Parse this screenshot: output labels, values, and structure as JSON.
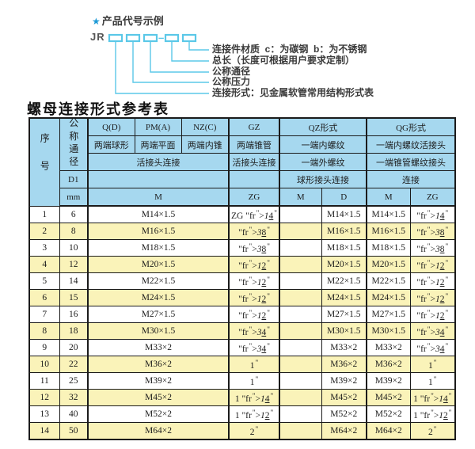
{
  "colors": {
    "header_bg": "#a6d8ef",
    "row_alt_bg": "#faf3b9",
    "line_cyan": "#5bc8e8",
    "star_blue": "#1e9ad6",
    "border_dark": "#1b1b1b"
  },
  "diagram": {
    "star": "★",
    "heading": "产品代号示例",
    "code_prefix": "JR",
    "separator": "—",
    "labels": [
      "连接件材质  c：为碳钢  b：为不锈钢",
      "总长（长度可根据用户要求定制）",
      "公称通径",
      "公称压力",
      "连接形式：见金属软管常用结构形式表"
    ]
  },
  "title": "螺母连接形式参考表",
  "table": {
    "header": {
      "seq": "序号",
      "dn": "公称通径",
      "d1": "D1",
      "mm": "mm",
      "col_q": "Q(D)",
      "col_pm": "PM(A)",
      "col_nz": "NZ(C)",
      "col_gz": "GZ",
      "col_qz": "QZ形式",
      "col_qg": "QG形式",
      "q_desc": "两端球形",
      "pm_desc": "两端平面",
      "nz_desc": "两端内锥",
      "gz_desc": "两端锥管",
      "qz_desc1": "一端内螺纹",
      "qg_desc1": "一端内螺纹活接头",
      "union_conn": "活接头连接",
      "gz_conn": "活接头连接",
      "qz_desc2": "一端外螺纹",
      "qg_desc2": "一端锥管螺纹接头",
      "qz_conn": "球形接头连接",
      "qg_conn": "连接",
      "m_label": "M",
      "zg_label": "ZG",
      "qz_m": "M",
      "qz_d": "D",
      "qg_m": "M",
      "qg_zg": "ZG"
    },
    "rows": [
      [
        "1",
        "6",
        "M14×1.5",
        "ZG 1/4\"",
        "",
        "M14×1.5",
        "M14×1.5",
        "1/4\""
      ],
      [
        "2",
        "8",
        "M16×1.5",
        "3/8\"",
        "",
        "M16×1.5",
        "M16×1.5",
        "3/8\""
      ],
      [
        "3",
        "10",
        "M18×1.5",
        "3/8\"",
        "",
        "M18×1.5",
        "M18×1.5",
        "3/8\""
      ],
      [
        "4",
        "12",
        "M20×1.5",
        "1/2\"",
        "",
        "M20×1.5",
        "M20×1.5",
        "1/2\""
      ],
      [
        "5",
        "14",
        "M22×1.5",
        "1/2\"",
        "",
        "M22×1.5",
        "M22×1.5",
        "1/2\""
      ],
      [
        "6",
        "15",
        "M24×1.5",
        "1/2\"",
        "",
        "M24×1.5",
        "M24×1.5",
        "1/2\""
      ],
      [
        "7",
        "16",
        "M27×1.5",
        "1/2\"",
        "",
        "M27×1.5",
        "M27×1.5",
        "1/2\""
      ],
      [
        "8",
        "18",
        "M30×1.5",
        "3/4\"",
        "",
        "M30×1.5",
        "M30×1.5",
        "3/4\""
      ],
      [
        "9",
        "20",
        "M33×2",
        "3/4\"",
        "",
        "M33×2",
        "M33×2",
        "3/4\""
      ],
      [
        "10",
        "22",
        "M36×2",
        "1\"",
        "",
        "M36×2",
        "M36×2",
        "1\""
      ],
      [
        "11",
        "25",
        "M39×2",
        "1\"",
        "",
        "M39×2",
        "M39×2",
        "1\""
      ],
      [
        "12",
        "32",
        "M45×2",
        "1 1/4\"",
        "",
        "M45×2",
        "M45×2",
        "1 1/4\""
      ],
      [
        "13",
        "40",
        "M52×2",
        "1 1/2\"",
        "",
        "M52×2",
        "M52×2",
        "1 1/2\""
      ],
      [
        "14",
        "50",
        "M64×2",
        "2\"",
        "",
        "M64×2",
        "M64×2",
        "2\""
      ]
    ]
  }
}
